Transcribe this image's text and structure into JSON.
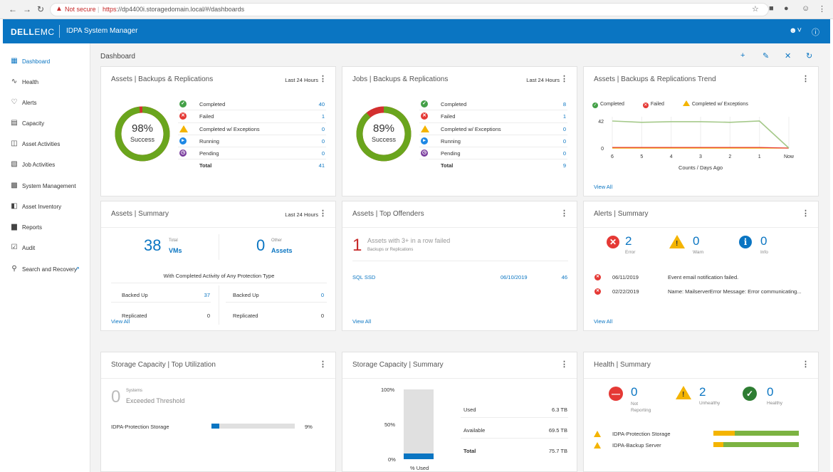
{
  "browser": {
    "not_secure": "Not secure",
    "url_scheme": "https",
    "url_rest": "://dp4400i.storagedomain.local/#/dashboards"
  },
  "app": {
    "brand": "DELL",
    "brand2": "EMC",
    "title": "IDPA System Manager"
  },
  "sidebar": {
    "items": [
      {
        "label": "Dashboard",
        "icon": "dashboard-icon",
        "active": true
      },
      {
        "label": "Health",
        "icon": "pulse-icon"
      },
      {
        "label": "Alerts",
        "icon": "bell-icon"
      },
      {
        "label": "Capacity",
        "icon": "database-icon"
      },
      {
        "label": "Asset Activities",
        "icon": "assets-icon"
      },
      {
        "label": "Job Activities",
        "icon": "jobs-icon"
      },
      {
        "label": "System Management",
        "icon": "system-icon"
      },
      {
        "label": "Asset Inventory",
        "icon": "inventory-icon"
      },
      {
        "label": "Reports",
        "icon": "bar-chart-icon"
      },
      {
        "label": "Audit",
        "icon": "audit-icon"
      },
      {
        "label": "Search and Recovery",
        "icon": "search-recovery-icon"
      }
    ]
  },
  "page_title": "Dashboard",
  "assets_backups": {
    "title": "Assets | Backups & Replications",
    "range": "Last 24 Hours",
    "percent": 0.98,
    "percent_label": "98%",
    "success": "Success",
    "rows": [
      {
        "label": "Completed",
        "value": "40"
      },
      {
        "label": "Failed",
        "value": "1"
      },
      {
        "label": "Completed w/ Exceptions",
        "value": "0"
      },
      {
        "label": "Running",
        "value": "0"
      },
      {
        "label": "Pending",
        "value": "0"
      }
    ],
    "total_label": "Total",
    "total_value": "41"
  },
  "jobs_backups": {
    "title": "Jobs | Backups & Replications",
    "range": "Last 24 Hours",
    "percent": 0.89,
    "percent_label": "89%",
    "success": "Success",
    "rows": [
      {
        "label": "Completed",
        "value": "8"
      },
      {
        "label": "Failed",
        "value": "1"
      },
      {
        "label": "Completed w/ Exceptions",
        "value": "0"
      },
      {
        "label": "Running",
        "value": "0"
      },
      {
        "label": "Pending",
        "value": "0"
      }
    ],
    "total_label": "Total",
    "total_value": "9"
  },
  "trend": {
    "title": "Assets | Backups & Replications Trend",
    "legend": [
      "Completed",
      "Failed",
      "Completed w/ Exceptions"
    ],
    "xlabel": "Counts / Days Ago",
    "view_all": "View All"
  },
  "chart_data": {
    "type": "line",
    "categories": [
      "6",
      "5",
      "4",
      "3",
      "2",
      "1",
      "Now"
    ],
    "series": [
      {
        "name": "Completed",
        "values": [
          42,
          40,
          41,
          41,
          40,
          42,
          0
        ]
      },
      {
        "name": "Failed",
        "values": [
          1,
          1,
          1,
          1,
          1,
          1,
          0
        ]
      },
      {
        "name": "Completed w/ Exceptions",
        "values": [
          0,
          0,
          0,
          0,
          0,
          0,
          0
        ]
      }
    ],
    "yticks": [
      "42",
      "0"
    ],
    "ylim": [
      0,
      42
    ],
    "xlabel": "Counts / Days Ago",
    "colors": [
      "#a5c98a",
      "#e53935",
      "#f4b400"
    ]
  },
  "assets_summary": {
    "title": "Assets | Summary",
    "range": "Last 24 Hours",
    "total_num": "38",
    "total_top": "Total",
    "total_unit": "VMs",
    "other_num": "0",
    "other_top": "Other",
    "other_unit": "Assets",
    "subtitle": "With Completed Activity of Any Protection Type",
    "left_backed_label": "Backed Up",
    "left_backed_value": "37",
    "left_repl_label": "Replicated",
    "left_repl_value": "0",
    "right_backed_label": "Backed Up",
    "right_backed_value": "0",
    "right_repl_label": "Replicated",
    "right_repl_value": "0",
    "view_all": "View All"
  },
  "top_offenders": {
    "title": "Assets | Top Offenders",
    "count": "1",
    "headline": "Assets with 3+ in a row failed",
    "sub": "Backups or Replications",
    "row_name": "SQL SSD",
    "row_date": "06/10/2019",
    "row_count": "46",
    "view_all": "View All"
  },
  "alerts_summary": {
    "title": "Alerts | Summary",
    "error_count": "2",
    "error_label": "Error",
    "warn_count": "0",
    "warn_label": "Warn",
    "info_count": "0",
    "info_label": "Info",
    "rows": [
      {
        "date": "06/11/2019",
        "message": "Event email notification failed."
      },
      {
        "date": "02/22/2019",
        "message": "Name: MailserverError Message: Error communicating..."
      }
    ],
    "view_all": "View All"
  },
  "storage_top": {
    "title": "Storage Capacity | Top Utilization",
    "count": "0",
    "top": "Systems",
    "label": "Exceeded Threshold",
    "row_name": "IDPA-Protection Storage",
    "row_fraction": 0.09,
    "row_pct": "9%"
  },
  "storage_summary": {
    "title": "Storage Capacity | Summary",
    "ticks": [
      "100%",
      "50%",
      "0%"
    ],
    "used_fraction": 0.083,
    "xlabel": "% Used",
    "used_label": "Used",
    "used_value": "6.3 TB",
    "avail_label": "Available",
    "avail_value": "69.5 TB",
    "total_label": "Total",
    "total_value": "75.7 TB"
  },
  "health_summary": {
    "title": "Health | Summary",
    "notrep_count": "0",
    "notrep_label": "Not Reporting",
    "unhealthy_count": "2",
    "unhealthy_label": "Unhealthy",
    "healthy_count": "0",
    "healthy_label": "Healthy",
    "rows": [
      {
        "name": "IDPA-Protection Storage",
        "warn_fraction": 0.25
      },
      {
        "name": "IDPA-Backup Server",
        "warn_fraction": 0.12
      }
    ]
  }
}
